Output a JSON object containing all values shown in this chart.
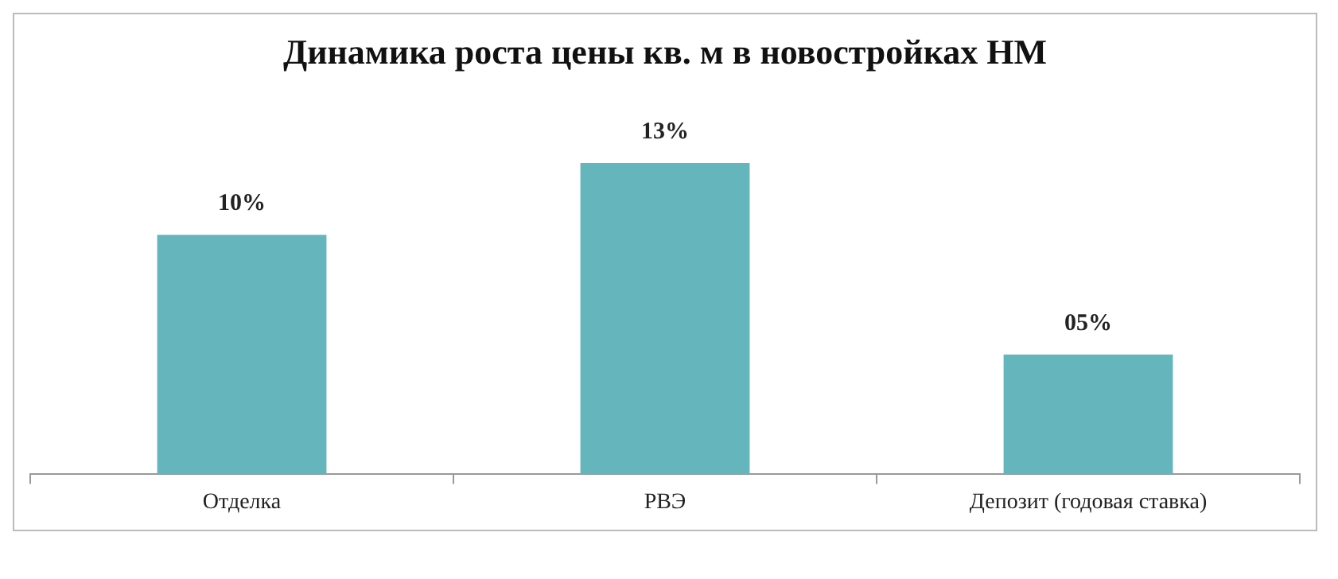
{
  "chart_data": {
    "type": "bar",
    "title": "Динамика роста цены кв. м в новостройках НМ",
    "categories": [
      "Отделка",
      "РВЭ",
      "Депозит (годовая ставка)"
    ],
    "values": [
      10,
      13,
      5
    ],
    "value_labels": [
      "10%",
      "13%",
      "05%"
    ],
    "color": "#65b5bc",
    "grid": false,
    "legend": false
  }
}
